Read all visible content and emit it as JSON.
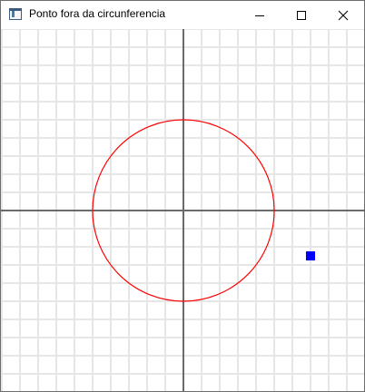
{
  "window": {
    "title": "Ponto fora da circunferencia"
  },
  "icons": {
    "app": "app-window-icon",
    "minimize": "minimize-icon",
    "maximize": "maximize-icon",
    "close": "close-icon"
  },
  "plot": {
    "grid_color": "#e6e6e6",
    "axis_color": "#6b6b6b",
    "circle": {
      "center": [
        0,
        0
      ],
      "radius": 5,
      "color": "#ff0000"
    },
    "point": {
      "x": 7,
      "y": -2.5,
      "color": "#0000ff"
    }
  }
}
